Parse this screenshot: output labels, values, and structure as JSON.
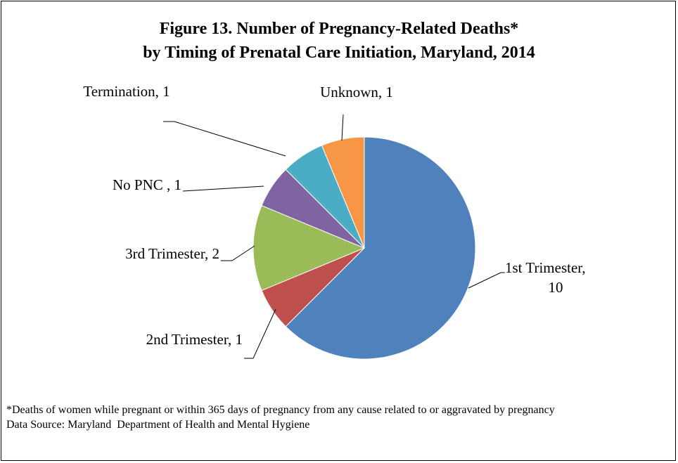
{
  "chart_data": {
    "type": "pie",
    "title": "Figure 13. Number of Pregnancy-Related Deaths*",
    "subtitle": "by Timing of Prenatal Care Initiation, Maryland, 2014",
    "values": [
      10,
      1,
      2,
      1,
      1,
      1
    ],
    "value_labels": [
      "1st Trimester,\n10",
      "2nd Trimester, 1",
      "3rd Trimester, 2",
      "No PNC , 1",
      "Termination, 1",
      "Unknown, 1"
    ],
    "colors": [
      "#4f81bd",
      "#c0504d",
      "#9bbb59",
      "#8064a2",
      "#4bacc6",
      "#f79646"
    ],
    "footnote": "*Deaths of women while pregnant or within 365 days of pregnancy from any cause related to or aggravated by pregnancy",
    "source": "Data Source: Maryland  Department of Health and Mental Hygiene"
  }
}
